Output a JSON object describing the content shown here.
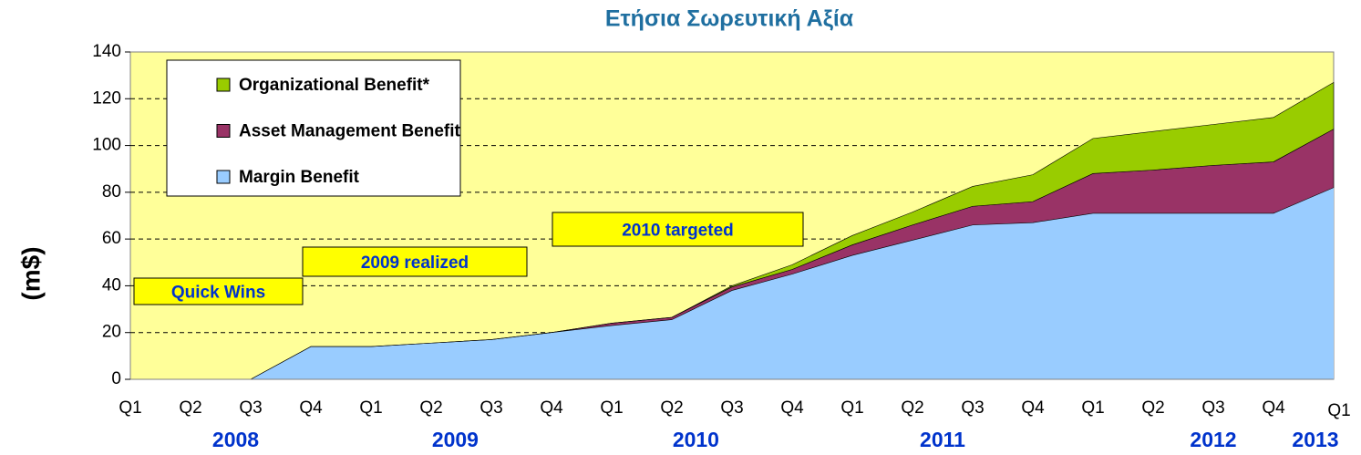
{
  "chart_data": {
    "type": "stacked_area",
    "title": "Ετήσια Σωρευτική Αξία",
    "y_label": "(m$)",
    "categories": [
      "Q1",
      "Q2",
      "Q3",
      "Q4",
      "Q1",
      "Q2",
      "Q3",
      "Q4",
      "Q1",
      "Q2",
      "Q3",
      "Q4",
      "Q1",
      "Q2",
      "Q3",
      "Q4",
      "Q1",
      "Q2",
      "Q3",
      "Q4",
      "Q1"
    ],
    "years": [
      "2008",
      "2009",
      "2010",
      "2011",
      "2012",
      "2013"
    ],
    "series": [
      {
        "name": "Margin Benefit",
        "color": "#99ccff",
        "values": [
          0,
          0,
          0,
          14,
          14,
          15.5,
          17,
          20,
          23,
          25.5,
          38,
          45,
          53,
          59.5,
          66,
          67,
          71,
          71,
          71,
          71,
          82
        ]
      },
      {
        "name": "Asset Management Benefit",
        "color": "#993366",
        "values": [
          0,
          0,
          0,
          0,
          0,
          0,
          0,
          0,
          1,
          1,
          1.5,
          2,
          4.5,
          6.5,
          8,
          9,
          17,
          18.5,
          20.5,
          22,
          25
        ]
      },
      {
        "name": "Organizational Benefit*",
        "color": "#99cc00",
        "values": [
          0,
          0,
          0,
          0,
          0,
          0,
          0,
          0,
          0,
          0,
          0.5,
          2,
          4,
          5.5,
          8.5,
          11.5,
          15,
          16.5,
          17.5,
          19,
          20
        ]
      }
    ],
    "annotations": [
      "Quick Wins",
      "2009 realized",
      "2010 targeted"
    ],
    "ylim": [
      0,
      140
    ],
    "yticks": [
      0,
      20,
      40,
      60,
      80,
      100,
      120,
      140
    ],
    "grid": true
  }
}
